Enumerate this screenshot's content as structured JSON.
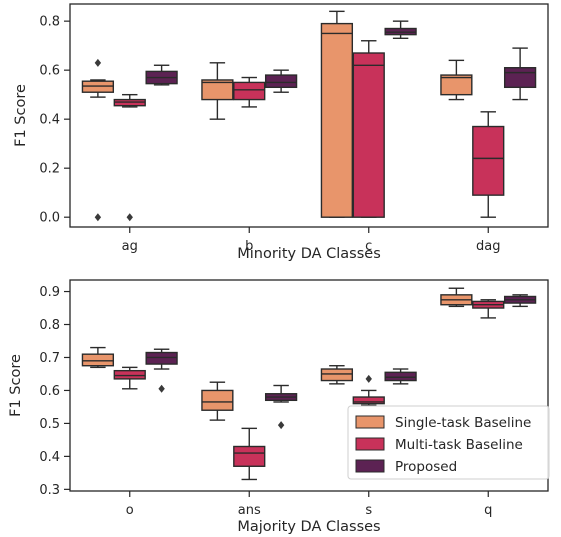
{
  "colors": {
    "Single-task Baseline": "#e8956b",
    "Multi-task Baseline": "#c8325a",
    "Proposed": "#5c2253",
    "line": "#2b2b2b",
    "axis": "#262626"
  },
  "chart_data": [
    {
      "type": "box",
      "xlabel": "Minority DA Classes",
      "ylabel": "F1 Score",
      "ylim": [
        -0.04,
        0.87
      ],
      "yticks": [
        "0.0",
        "0.2",
        "0.4",
        "0.6",
        "0.8"
      ],
      "categories": [
        "ag",
        "b",
        "c",
        "dag"
      ],
      "series": [
        {
          "name": "Single-task Baseline",
          "boxes": [
            {
              "whislo": 0.49,
              "q1": 0.51,
              "med": 0.535,
              "q3": 0.555,
              "whishi": 0.56,
              "fliers": [
                0.63,
                0.0
              ]
            },
            {
              "whislo": 0.4,
              "q1": 0.48,
              "med": 0.55,
              "q3": 0.56,
              "whishi": 0.63,
              "fliers": []
            },
            {
              "whislo": 0.0,
              "q1": 0.0,
              "med": 0.75,
              "q3": 0.79,
              "whishi": 0.84,
              "fliers": []
            },
            {
              "whislo": 0.48,
              "q1": 0.5,
              "med": 0.57,
              "q3": 0.58,
              "whishi": 0.64,
              "fliers": []
            }
          ]
        },
        {
          "name": "Multi-task Baseline",
          "boxes": [
            {
              "whislo": 0.45,
              "q1": 0.455,
              "med": 0.47,
              "q3": 0.48,
              "whishi": 0.5,
              "fliers": [
                0.0
              ]
            },
            {
              "whislo": 0.45,
              "q1": 0.48,
              "med": 0.52,
              "q3": 0.55,
              "whishi": 0.57,
              "fliers": []
            },
            {
              "whislo": 0.0,
              "q1": 0.0,
              "med": 0.62,
              "q3": 0.67,
              "whishi": 0.72,
              "fliers": []
            },
            {
              "whislo": 0.0,
              "q1": 0.09,
              "med": 0.24,
              "q3": 0.37,
              "whishi": 0.43,
              "fliers": []
            }
          ]
        },
        {
          "name": "Proposed",
          "boxes": [
            {
              "whislo": 0.54,
              "q1": 0.545,
              "med": 0.57,
              "q3": 0.595,
              "whishi": 0.62,
              "fliers": []
            },
            {
              "whislo": 0.51,
              "q1": 0.53,
              "med": 0.55,
              "q3": 0.58,
              "whishi": 0.6,
              "fliers": []
            },
            {
              "whislo": 0.73,
              "q1": 0.745,
              "med": 0.755,
              "q3": 0.77,
              "whishi": 0.8,
              "fliers": []
            },
            {
              "whislo": 0.48,
              "q1": 0.53,
              "med": 0.59,
              "q3": 0.61,
              "whishi": 0.69,
              "fliers": []
            }
          ]
        }
      ]
    },
    {
      "type": "box",
      "xlabel": "Majority DA Classes",
      "ylabel": "F1 Score",
      "ylim": [
        0.295,
        0.935
      ],
      "yticks": [
        "0.3",
        "0.4",
        "0.5",
        "0.6",
        "0.7",
        "0.8",
        "0.9"
      ],
      "categories": [
        "o",
        "ans",
        "s",
        "q"
      ],
      "legend": {
        "position": "lower right",
        "entries": [
          "Single-task Baseline",
          "Multi-task Baseline",
          "Proposed"
        ]
      },
      "series": [
        {
          "name": "Single-task Baseline",
          "boxes": [
            {
              "whislo": 0.67,
              "q1": 0.675,
              "med": 0.69,
              "q3": 0.71,
              "whishi": 0.73,
              "fliers": []
            },
            {
              "whislo": 0.51,
              "q1": 0.54,
              "med": 0.565,
              "q3": 0.6,
              "whishi": 0.625,
              "fliers": []
            },
            {
              "whislo": 0.62,
              "q1": 0.63,
              "med": 0.65,
              "q3": 0.665,
              "whishi": 0.675,
              "fliers": []
            },
            {
              "whislo": 0.855,
              "q1": 0.86,
              "med": 0.875,
              "q3": 0.89,
              "whishi": 0.91,
              "fliers": []
            }
          ]
        },
        {
          "name": "Multi-task Baseline",
          "boxes": [
            {
              "whislo": 0.605,
              "q1": 0.635,
              "med": 0.645,
              "q3": 0.66,
              "whishi": 0.67,
              "fliers": []
            },
            {
              "whislo": 0.33,
              "q1": 0.37,
              "med": 0.41,
              "q3": 0.43,
              "whishi": 0.485,
              "fliers": []
            },
            {
              "whislo": 0.555,
              "q1": 0.56,
              "med": 0.565,
              "q3": 0.58,
              "whishi": 0.6,
              "fliers": [
                0.635
              ]
            },
            {
              "whislo": 0.82,
              "q1": 0.85,
              "med": 0.86,
              "q3": 0.87,
              "whishi": 0.875,
              "fliers": []
            }
          ]
        },
        {
          "name": "Proposed",
          "boxes": [
            {
              "whislo": 0.665,
              "q1": 0.68,
              "med": 0.7,
              "q3": 0.715,
              "whishi": 0.725,
              "fliers": [
                0.605
              ]
            },
            {
              "whislo": 0.565,
              "q1": 0.57,
              "med": 0.58,
              "q3": 0.59,
              "whishi": 0.615,
              "fliers": [
                0.495
              ]
            },
            {
              "whislo": 0.62,
              "q1": 0.63,
              "med": 0.64,
              "q3": 0.655,
              "whishi": 0.665,
              "fliers": []
            },
            {
              "whislo": 0.855,
              "q1": 0.865,
              "med": 0.875,
              "q3": 0.885,
              "whishi": 0.89,
              "fliers": []
            }
          ]
        }
      ]
    }
  ]
}
